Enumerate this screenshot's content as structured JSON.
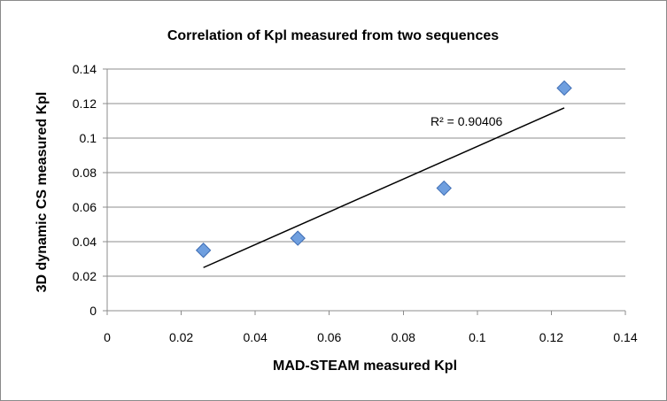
{
  "chart_data": {
    "type": "scatter",
    "title": "Correlation of Kpl measured from two sequences",
    "xlabel": "MAD-STEAM measured Kpl",
    "ylabel": "3D dynamic CS measured Kpl",
    "xlim": [
      0,
      0.14
    ],
    "ylim": [
      0,
      0.14
    ],
    "x_ticks": [
      0,
      0.02,
      0.04,
      0.06,
      0.08,
      0.1,
      0.12,
      0.14
    ],
    "x_tick_labels": [
      "0",
      "0.02",
      "0.04",
      "0.06",
      "0.08",
      "0.1",
      "0.12",
      "0.14"
    ],
    "y_ticks": [
      0,
      0.02,
      0.04,
      0.06,
      0.08,
      0.1,
      0.12,
      0.14
    ],
    "y_tick_labels": [
      "0",
      "0.02",
      "0.04",
      "0.06",
      "0.08",
      "0.1",
      "0.12",
      "0.14"
    ],
    "gridlines": "horizontal",
    "series": [
      {
        "name": "Kpl",
        "marker": "diamond",
        "x": [
          0.026,
          0.0515,
          0.091,
          0.1235
        ],
        "y": [
          0.035,
          0.042,
          0.071,
          0.129
        ]
      }
    ],
    "trendline": {
      "type": "linear",
      "x_start": 0.026,
      "x_end": 0.1235,
      "y_start": 0.025,
      "y_end": 0.1175,
      "r2_label": "R² = 0.90406"
    },
    "colors": {
      "marker_fill": "#6f9fdf",
      "marker_stroke": "#3d6cb3",
      "grid": "#8c8c8c",
      "trendline": "#000000"
    }
  }
}
